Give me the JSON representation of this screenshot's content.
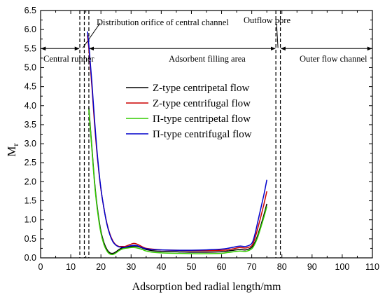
{
  "chart_data": {
    "type": "line",
    "xlabel": "Adsorption bed radial length/mm",
    "ylabel": "Mr",
    "ylabel_main": "M",
    "ylabel_sub": "r",
    "xlim": [
      0,
      110
    ],
    "ylim": [
      0,
      6.5
    ],
    "xticks": [
      "0",
      "10",
      "20",
      "30",
      "40",
      "50",
      "60",
      "70",
      "80",
      "90",
      "100",
      "110"
    ],
    "yticks": [
      "0.0",
      "0.5",
      "1.0",
      "1.5",
      "2.0",
      "2.5",
      "3.0",
      "3.5",
      "4.0",
      "4.5",
      "5.0",
      "5.5",
      "6.0",
      "6.5"
    ],
    "grid": false,
    "legend_position": "center-right",
    "region_lines_x": [
      13,
      14.5,
      16,
      78,
      79.5
    ],
    "region_arrow_y": 5.5,
    "annotations": {
      "central_runner": "Central runner",
      "distribution_orifice": "Distribution orifice of central channel",
      "adsorbent_area": "Adsorbent filling area",
      "outflow_pore": "Outflow pore",
      "outer_channel": "Outer flow channel"
    },
    "series": [
      {
        "name": "Z-type centripetal flow",
        "color": "#000000",
        "x": [
          16,
          17,
          18,
          19,
          20,
          21,
          22,
          23,
          24,
          25,
          26,
          27,
          28,
          29,
          30,
          31,
          32,
          33,
          34,
          35,
          37,
          40,
          45,
          50,
          55,
          60,
          62,
          64,
          66,
          68,
          70,
          71,
          72,
          73,
          74,
          75
        ],
        "y": [
          3.95,
          2.9,
          1.9,
          1.2,
          0.7,
          0.4,
          0.22,
          0.13,
          0.12,
          0.16,
          0.22,
          0.26,
          0.27,
          0.28,
          0.3,
          0.31,
          0.3,
          0.28,
          0.25,
          0.22,
          0.19,
          0.17,
          0.16,
          0.15,
          0.15,
          0.16,
          0.18,
          0.2,
          0.22,
          0.21,
          0.28,
          0.4,
          0.6,
          0.85,
          1.12,
          1.42
        ]
      },
      {
        "name": "Z-type centrifugal flow",
        "color": "#cc0000",
        "x": [
          15.5,
          16,
          17,
          18,
          19,
          20,
          21,
          22,
          23,
          24,
          25,
          26,
          27,
          28,
          29,
          30,
          31,
          32,
          33,
          34,
          35,
          37,
          40,
          45,
          50,
          55,
          60,
          62,
          64,
          66,
          68,
          70,
          71,
          72,
          73,
          74,
          75
        ],
        "y": [
          5.85,
          5.5,
          4.5,
          3.4,
          2.5,
          1.8,
          1.3,
          0.9,
          0.62,
          0.44,
          0.34,
          0.3,
          0.3,
          0.3,
          0.33,
          0.36,
          0.38,
          0.36,
          0.32,
          0.28,
          0.25,
          0.23,
          0.21,
          0.2,
          0.19,
          0.19,
          0.2,
          0.21,
          0.24,
          0.27,
          0.26,
          0.32,
          0.5,
          0.78,
          1.08,
          1.4,
          1.75
        ]
      },
      {
        "name": "Π-type centripetal flow",
        "color": "#33cc00",
        "x": [
          16,
          17,
          18,
          19,
          20,
          21,
          22,
          23,
          24,
          25,
          26,
          27,
          28,
          29,
          30,
          31,
          32,
          33,
          34,
          35,
          37,
          40,
          45,
          50,
          55,
          60,
          62,
          64,
          66,
          68,
          70,
          71,
          72,
          73,
          74,
          75
        ],
        "y": [
          3.9,
          2.85,
          1.85,
          1.15,
          0.65,
          0.35,
          0.18,
          0.1,
          0.09,
          0.13,
          0.19,
          0.23,
          0.25,
          0.26,
          0.27,
          0.27,
          0.26,
          0.24,
          0.21,
          0.18,
          0.15,
          0.13,
          0.12,
          0.11,
          0.11,
          0.12,
          0.14,
          0.16,
          0.18,
          0.17,
          0.24,
          0.36,
          0.55,
          0.8,
          1.06,
          1.35
        ]
      },
      {
        "name": "Π-type centrifugal flow",
        "color": "#0000cc",
        "x": [
          15.5,
          16,
          17,
          18,
          19,
          20,
          21,
          22,
          23,
          24,
          25,
          26,
          27,
          28,
          29,
          30,
          31,
          32,
          33,
          34,
          35,
          37,
          40,
          45,
          50,
          55,
          60,
          62,
          64,
          66,
          68,
          70,
          71,
          72,
          73,
          74,
          75
        ],
        "y": [
          5.95,
          5.6,
          4.6,
          3.5,
          2.55,
          1.82,
          1.3,
          0.88,
          0.6,
          0.42,
          0.33,
          0.29,
          0.28,
          0.28,
          0.3,
          0.32,
          0.33,
          0.32,
          0.29,
          0.26,
          0.24,
          0.22,
          0.21,
          0.2,
          0.2,
          0.21,
          0.23,
          0.25,
          0.28,
          0.31,
          0.3,
          0.38,
          0.6,
          0.95,
          1.3,
          1.65,
          2.05
        ]
      }
    ]
  }
}
